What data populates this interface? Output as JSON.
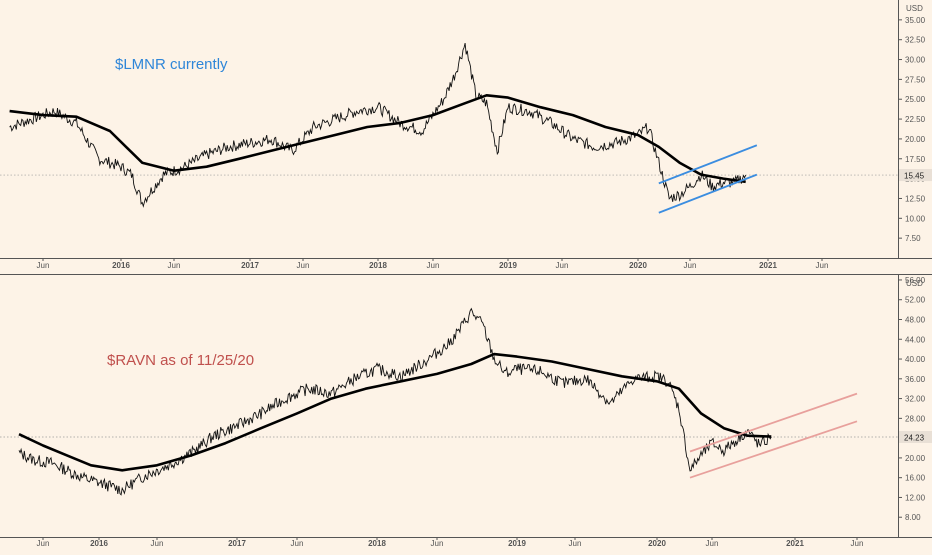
{
  "chart_data": [
    {
      "type": "line",
      "title": "$LMNR currently",
      "currency": "USD",
      "last_price": "15.45",
      "y_ticks": [
        "7.50",
        "10.00",
        "12.50",
        "15.00",
        "17.50",
        "20.00",
        "22.50",
        "25.00",
        "27.50",
        "30.00",
        "32.50",
        "35.00"
      ],
      "x_ticks": [
        "Jun",
        "2016",
        "Jun",
        "2017",
        "Jun",
        "2018",
        "Jun",
        "2019",
        "Jun",
        "2020",
        "Jun",
        "2021",
        "Jun"
      ],
      "ylim": [
        5,
        37.5
      ],
      "series": [
        {
          "style": "price",
          "x": [
            "2015-03",
            "2015-05",
            "2015-07",
            "2015-09",
            "2015-11",
            "2016-01",
            "2016-02",
            "2016-03",
            "2016-05",
            "2016-07",
            "2016-09",
            "2016-11",
            "2017-01",
            "2017-03",
            "2017-05",
            "2017-07",
            "2017-09",
            "2017-11",
            "2018-01",
            "2018-03",
            "2018-05",
            "2018-07",
            "2018-08",
            "2018-09",
            "2018-10",
            "2018-11",
            "2018-12",
            "2019-01",
            "2019-03",
            "2019-05",
            "2019-07",
            "2019-09",
            "2019-11",
            "2020-01",
            "2020-02",
            "2020-03",
            "2020-04",
            "2020-05",
            "2020-06",
            "2020-07",
            "2020-08",
            "2020-09",
            "2020-10",
            "2020-11"
          ],
          "y": [
            21.5,
            22.5,
            23.5,
            22.0,
            17.5,
            16.5,
            15.5,
            12.0,
            15.5,
            16.5,
            18.0,
            19.0,
            19.5,
            20.0,
            18.5,
            21.5,
            22.5,
            23.5,
            24.0,
            22.0,
            21.0,
            25.0,
            28.0,
            32.0,
            25.5,
            24.5,
            18.5,
            24.0,
            23.5,
            22.0,
            20.0,
            19.0,
            19.5,
            20.5,
            21.5,
            17.0,
            12.5,
            13.0,
            14.0,
            15.5,
            14.0,
            14.5,
            14.5,
            15.45
          ]
        },
        {
          "style": "moving-average",
          "x": [
            "2015-03",
            "2015-06",
            "2015-09",
            "2015-12",
            "2016-03",
            "2016-06",
            "2016-09",
            "2016-12",
            "2017-03",
            "2017-06",
            "2017-09",
            "2017-12",
            "2018-03",
            "2018-06",
            "2018-09",
            "2018-11",
            "2019-01",
            "2019-04",
            "2019-07",
            "2019-10",
            "2020-01",
            "2020-03",
            "2020-05",
            "2020-07",
            "2020-09",
            "2020-11"
          ],
          "y": [
            23.5,
            23.0,
            22.8,
            21.0,
            17.0,
            16.0,
            16.5,
            17.5,
            18.5,
            19.5,
            20.5,
            21.5,
            22.0,
            23.0,
            24.5,
            25.5,
            25.2,
            24.0,
            23.0,
            21.5,
            20.5,
            19.0,
            17.0,
            15.5,
            15.0,
            14.6
          ]
        }
      ],
      "channel_color": "#3b8de0",
      "channel_lines": [
        {
          "x": [
            "2020-03",
            "2020-12"
          ],
          "y": [
            14.4,
            19.2
          ]
        },
        {
          "x": [
            "2020-03",
            "2020-12"
          ],
          "y": [
            10.7,
            15.5
          ]
        }
      ]
    },
    {
      "type": "line",
      "title": "$RAVN as of 11/25/20",
      "currency": "USD",
      "last_price": "24.23",
      "y_ticks": [
        "8.00",
        "12.00",
        "16.00",
        "20.00",
        "24.00",
        "28.00",
        "32.00",
        "36.00",
        "40.00",
        "44.00",
        "48.00",
        "52.00",
        "56.00"
      ],
      "x_ticks": [
        "Jun",
        "2016",
        "Jun",
        "2017",
        "Jun",
        "2018",
        "Jun",
        "2019",
        "Jun",
        "2020",
        "Jun",
        "2021",
        "Jun"
      ],
      "ylim": [
        4,
        57
      ],
      "series": [
        {
          "style": "price",
          "x": [
            "2015-03",
            "2015-05",
            "2015-07",
            "2015-09",
            "2015-11",
            "2016-01",
            "2016-03",
            "2016-05",
            "2016-07",
            "2016-09",
            "2016-11",
            "2017-01",
            "2017-03",
            "2017-05",
            "2017-07",
            "2017-09",
            "2017-11",
            "2018-01",
            "2018-03",
            "2018-05",
            "2018-07",
            "2018-08",
            "2018-09",
            "2018-10",
            "2018-11",
            "2018-12",
            "2019-01",
            "2019-03",
            "2019-05",
            "2019-07",
            "2019-09",
            "2019-11",
            "2020-01",
            "2020-02",
            "2020-03",
            "2020-04",
            "2020-05",
            "2020-06",
            "2020-07",
            "2020-08",
            "2020-09",
            "2020-10",
            "2020-11"
          ],
          "y": [
            21.0,
            19.5,
            19.0,
            17.5,
            16.0,
            15.0,
            13.5,
            16.5,
            18.5,
            21.0,
            24.5,
            26.5,
            29.0,
            32.0,
            34.0,
            33.0,
            36.0,
            38.0,
            36.5,
            39.5,
            43.0,
            46.0,
            49.5,
            47.0,
            40.0,
            37.0,
            38.0,
            37.5,
            35.0,
            36.0,
            31.0,
            36.0,
            36.5,
            35.5,
            30.0,
            17.5,
            20.5,
            23.0,
            21.5,
            23.5,
            25.5,
            22.5,
            24.23
          ]
        },
        {
          "style": "moving-average",
          "x": [
            "2015-03",
            "2015-06",
            "2015-09",
            "2015-12",
            "2016-03",
            "2016-06",
            "2016-09",
            "2016-12",
            "2017-03",
            "2017-06",
            "2017-09",
            "2017-12",
            "2018-03",
            "2018-06",
            "2018-09",
            "2018-11",
            "2019-01",
            "2019-04",
            "2019-07",
            "2019-10",
            "2020-01",
            "2020-03",
            "2020-05",
            "2020-07",
            "2020-09",
            "2020-11"
          ],
          "y": [
            24.8,
            22.5,
            20.5,
            18.5,
            17.5,
            18.5,
            20.5,
            23.0,
            26.0,
            29.0,
            32.0,
            34.0,
            35.5,
            37.0,
            39.0,
            41.0,
            40.5,
            39.5,
            38.0,
            36.5,
            35.5,
            34.0,
            29.0,
            26.0,
            24.5,
            24.3
          ]
        }
      ],
      "channel_color": "#e8a09c",
      "channel_lines": [
        {
          "x": [
            "2020-04",
            "2021-06"
          ],
          "y": [
            21.3,
            33.0
          ]
        },
        {
          "x": [
            "2020-04",
            "2021-06"
          ],
          "y": [
            16.0,
            27.4
          ]
        }
      ]
    }
  ]
}
